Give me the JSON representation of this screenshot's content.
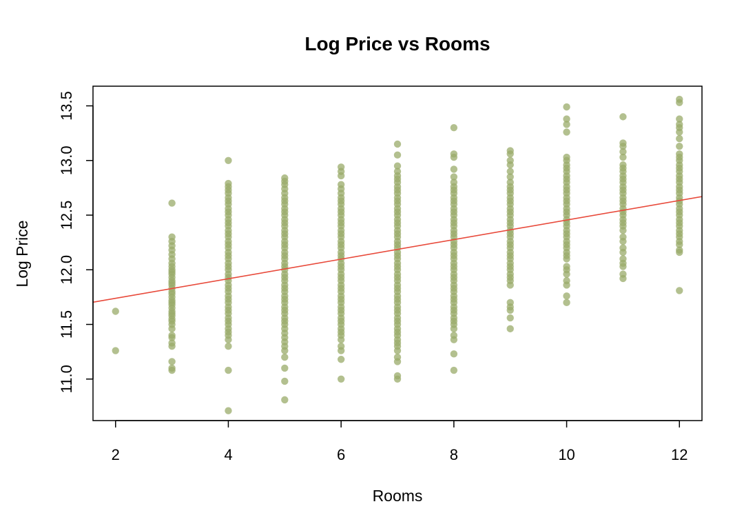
{
  "chart_data": {
    "type": "scatter",
    "title": "Log Price vs Rooms",
    "xlabel": "Rooms",
    "ylabel": "Log Price",
    "xlim": [
      1.6,
      12.4
    ],
    "ylim": [
      10.62,
      13.68
    ],
    "xticks": [
      2,
      4,
      6,
      8,
      10,
      12
    ],
    "yticks": [
      11.0,
      11.5,
      12.0,
      12.5,
      13.0,
      13.5
    ],
    "grid": false,
    "legend": "none",
    "colors": {
      "points": "#9aab6a",
      "fit_line": "#e8493a",
      "axis": "#000000"
    },
    "regression_line": {
      "intercept": 11.56,
      "slope": 0.0895
    },
    "series": [
      {
        "point_groups": [
          {
            "x": 2,
            "y_values": [
              11.26,
              11.62
            ]
          },
          {
            "x": 3,
            "y_values": [
              11.08,
              11.1,
              11.16,
              11.3,
              11.33,
              11.38,
              11.4,
              11.46,
              11.5,
              11.53,
              11.55,
              11.58,
              11.6,
              11.62,
              11.65,
              11.68,
              11.7,
              11.72,
              11.75,
              11.78,
              11.8,
              11.83,
              11.86,
              11.88,
              11.9,
              11.93,
              11.96,
              11.98,
              12.0,
              12.03,
              12.06,
              12.1,
              12.14,
              12.18,
              12.22,
              12.26,
              12.3,
              12.61
            ]
          },
          {
            "x": 4,
            "y_values": [
              10.71,
              11.08,
              11.3,
              11.36,
              11.4,
              11.43,
              11.46,
              11.5,
              11.53,
              11.56,
              11.6,
              11.63,
              11.66,
              11.7,
              11.73,
              11.76,
              11.8,
              11.83,
              11.86,
              11.9,
              11.93,
              11.96,
              12.0,
              12.03,
              12.06,
              12.1,
              12.13,
              12.16,
              12.2,
              12.23,
              12.26,
              12.3,
              12.33,
              12.36,
              12.4,
              12.43,
              12.46,
              12.5,
              12.53,
              12.56,
              12.6,
              12.63,
              12.66,
              12.7,
              12.73,
              12.76,
              12.79,
              13.0
            ]
          },
          {
            "x": 5,
            "y_values": [
              10.81,
              10.98,
              11.1,
              11.2,
              11.26,
              11.3,
              11.34,
              11.38,
              11.42,
              11.46,
              11.5,
              11.53,
              11.56,
              11.6,
              11.63,
              11.66,
              11.7,
              11.73,
              11.76,
              11.8,
              11.83,
              11.86,
              11.9,
              11.93,
              11.96,
              12.0,
              12.03,
              12.06,
              12.1,
              12.13,
              12.16,
              12.2,
              12.23,
              12.26,
              12.3,
              12.33,
              12.36,
              12.4,
              12.43,
              12.46,
              12.5,
              12.53,
              12.56,
              12.6,
              12.63,
              12.66,
              12.7,
              12.74,
              12.78,
              12.81,
              12.84
            ]
          },
          {
            "x": 6,
            "y_values": [
              11.0,
              11.18,
              11.26,
              11.3,
              11.36,
              11.4,
              11.43,
              11.46,
              11.5,
              11.53,
              11.56,
              11.6,
              11.63,
              11.66,
              11.7,
              11.73,
              11.76,
              11.8,
              11.83,
              11.86,
              11.9,
              11.93,
              11.96,
              12.0,
              12.03,
              12.06,
              12.1,
              12.13,
              12.16,
              12.2,
              12.23,
              12.26,
              12.3,
              12.33,
              12.36,
              12.4,
              12.43,
              12.46,
              12.5,
              12.53,
              12.56,
              12.6,
              12.63,
              12.66,
              12.7,
              12.74,
              12.78,
              12.86,
              12.9,
              12.94
            ]
          },
          {
            "x": 7,
            "y_values": [
              11.0,
              11.03,
              11.16,
              11.2,
              11.26,
              11.3,
              11.33,
              11.36,
              11.4,
              11.43,
              11.46,
              11.5,
              11.53,
              11.56,
              11.6,
              11.63,
              11.66,
              11.7,
              11.73,
              11.76,
              11.8,
              11.83,
              11.86,
              11.9,
              11.93,
              11.96,
              12.0,
              12.03,
              12.06,
              12.1,
              12.13,
              12.16,
              12.2,
              12.23,
              12.26,
              12.3,
              12.33,
              12.36,
              12.4,
              12.43,
              12.46,
              12.5,
              12.53,
              12.56,
              12.6,
              12.63,
              12.66,
              12.7,
              12.73,
              12.76,
              12.8,
              12.83,
              12.86,
              12.9,
              12.95,
              13.05,
              13.15
            ]
          },
          {
            "x": 8,
            "y_values": [
              11.08,
              11.23,
              11.36,
              11.4,
              11.46,
              11.5,
              11.53,
              11.56,
              11.6,
              11.63,
              11.66,
              11.7,
              11.73,
              11.76,
              11.8,
              11.83,
              11.86,
              11.9,
              11.93,
              11.96,
              12.0,
              12.03,
              12.06,
              12.1,
              12.13,
              12.16,
              12.2,
              12.23,
              12.26,
              12.3,
              12.33,
              12.36,
              12.4,
              12.43,
              12.46,
              12.5,
              12.53,
              12.56,
              12.6,
              12.63,
              12.66,
              12.7,
              12.73,
              12.76,
              12.8,
              12.85,
              12.92,
              13.03,
              13.06,
              13.3
            ]
          },
          {
            "x": 9,
            "y_values": [
              11.46,
              11.56,
              11.63,
              11.66,
              11.7,
              11.86,
              11.9,
              11.93,
              11.96,
              12.0,
              12.03,
              12.06,
              12.1,
              12.13,
              12.16,
              12.2,
              12.23,
              12.26,
              12.3,
              12.33,
              12.36,
              12.4,
              12.43,
              12.46,
              12.5,
              12.53,
              12.56,
              12.6,
              12.63,
              12.66,
              12.7,
              12.73,
              12.76,
              12.8,
              12.85,
              12.9,
              12.96,
              13.0,
              13.06,
              13.09
            ]
          },
          {
            "x": 10,
            "y_values": [
              11.7,
              11.76,
              11.86,
              11.9,
              11.96,
              12.0,
              12.03,
              12.1,
              12.13,
              12.16,
              12.2,
              12.23,
              12.26,
              12.3,
              12.33,
              12.36,
              12.4,
              12.43,
              12.46,
              12.5,
              12.53,
              12.56,
              12.6,
              12.63,
              12.66,
              12.7,
              12.73,
              12.76,
              12.8,
              12.83,
              12.86,
              12.9,
              12.93,
              12.96,
              13.0,
              13.03,
              13.26,
              13.33,
              13.38,
              13.49
            ]
          },
          {
            "x": 11,
            "y_values": [
              11.92,
              11.96,
              12.03,
              12.06,
              12.1,
              12.16,
              12.2,
              12.26,
              12.3,
              12.36,
              12.4,
              12.43,
              12.46,
              12.5,
              12.53,
              12.56,
              12.6,
              12.63,
              12.66,
              12.7,
              12.73,
              12.76,
              12.8,
              12.83,
              12.86,
              12.9,
              12.93,
              12.96,
              13.03,
              13.08,
              13.13,
              13.16,
              13.4
            ]
          },
          {
            "x": 12,
            "y_values": [
              11.81,
              12.16,
              12.18,
              12.23,
              12.26,
              12.3,
              12.33,
              12.36,
              12.4,
              12.43,
              12.46,
              12.5,
              12.53,
              12.56,
              12.6,
              12.63,
              12.66,
              12.7,
              12.73,
              12.76,
              12.8,
              12.83,
              12.86,
              12.9,
              12.93,
              12.96,
              13.0,
              13.03,
              13.06,
              13.13,
              13.2,
              13.26,
              13.3,
              13.33,
              13.38,
              13.53,
              13.56
            ]
          }
        ]
      }
    ]
  }
}
